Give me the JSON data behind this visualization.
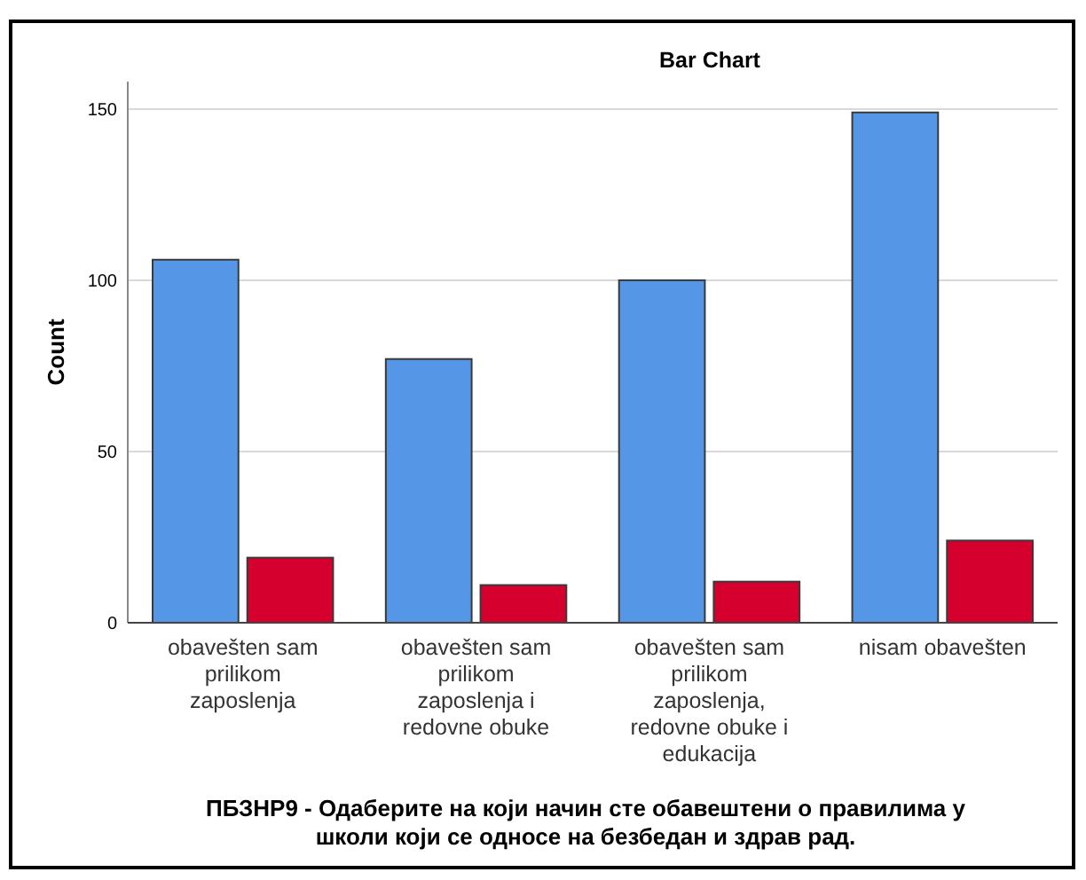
{
  "chart_data": {
    "type": "bar",
    "title": "Bar Chart",
    "xlabel": "ПБЗНР9 - Одаберите на који начин сте обавештени о правилима у школи који се односе на безбедан и здрав рад.",
    "ylabel": "Count",
    "categories": [
      "obavešten sam prilikom zaposlenja",
      "obavešten sam prilikom zaposlenja i redovne obuke",
      "obavešten sam prilikom zaposlenja, redovne obuke i edukacija",
      "nisam obavešten"
    ],
    "series": [
      {
        "color": "#5596e6",
        "values": [
          106,
          77,
          100,
          149
        ]
      },
      {
        "color": "#d6002f",
        "values": [
          19,
          11,
          12,
          24
        ]
      }
    ],
    "ylim": [
      0,
      158
    ],
    "yticks": [
      0,
      50,
      100,
      150
    ],
    "grid": "y"
  }
}
